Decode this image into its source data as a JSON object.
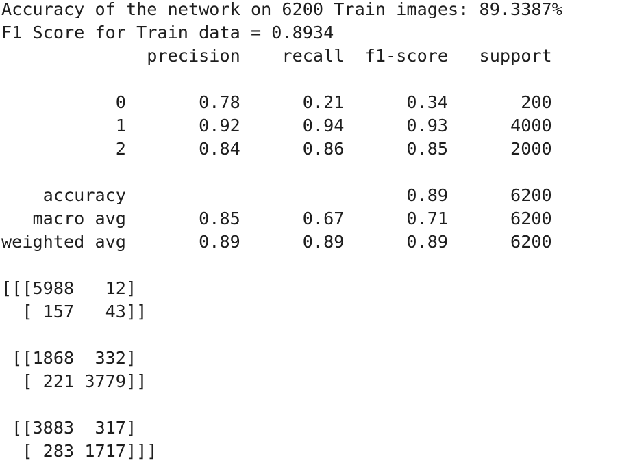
{
  "output": {
    "lines": [
      "Accuracy of the network on 6200 Train images: 89.3387%",
      "F1 Score for Train data = 0.8934",
      "              precision    recall  f1-score   support",
      "",
      "           0       0.78      0.21      0.34       200",
      "           1       0.92      0.94      0.93      4000",
      "           2       0.84      0.86      0.85      2000",
      "",
      "    accuracy                           0.89      6200",
      "   macro avg       0.85      0.67      0.71      6200",
      "weighted avg       0.89      0.89      0.89      6200",
      "",
      "[[[5988   12]",
      "  [ 157   43]]",
      "",
      " [[1868  332]",
      "  [ 221 3779]]",
      "",
      " [[3883  317]",
      "  [ 283 1717]]]"
    ]
  }
}
